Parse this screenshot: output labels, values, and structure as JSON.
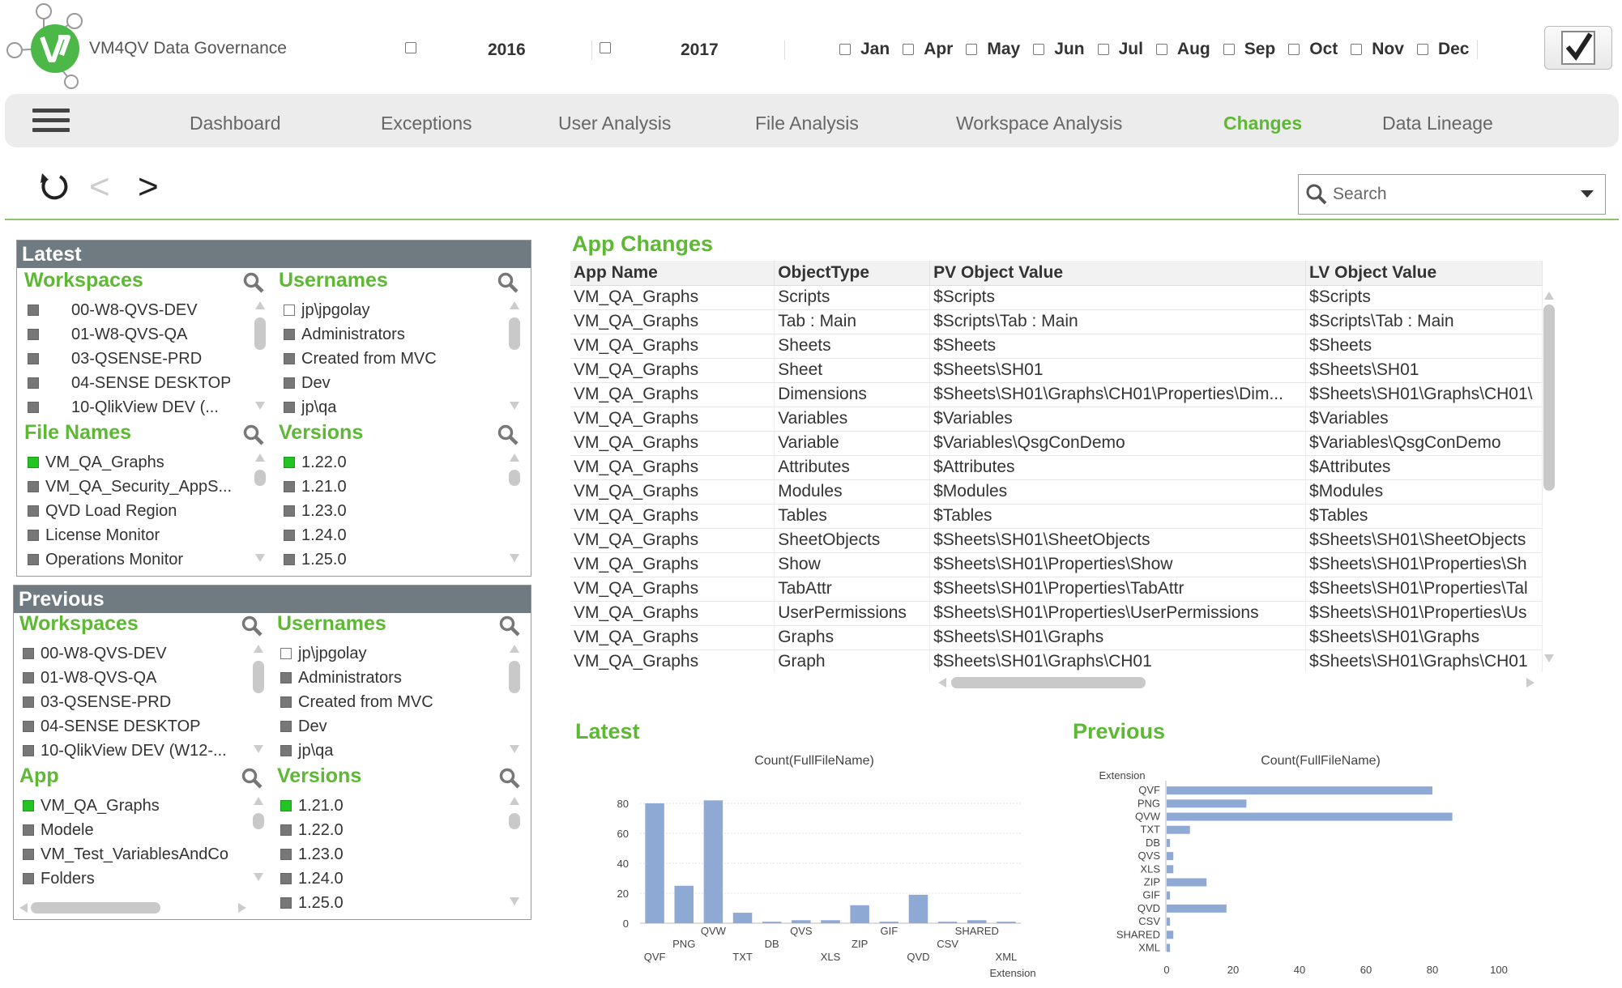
{
  "header": {
    "app_title": "VM4QV  Data Governance",
    "years": [
      "2016",
      "2017"
    ],
    "months": [
      "Jan",
      "Apr",
      "May",
      "Jun",
      "Jul",
      "Aug",
      "Sep",
      "Oct",
      "Nov",
      "Dec"
    ]
  },
  "nav": {
    "items": [
      "Dashboard",
      "Exceptions",
      "User Analysis",
      "File Analysis",
      "Workspace Analysis",
      "Changes",
      "Data Lineage"
    ],
    "active": "Changes"
  },
  "toolbar": {
    "search_placeholder": "Search",
    "back_glyph": "<",
    "forward_glyph": ">"
  },
  "latest_panel": {
    "title": "Latest",
    "workspaces": {
      "title": "Workspaces",
      "items": [
        "00-W8-QVS-DEV",
        "01-W8-QVS-QA",
        "03-QSENSE-PRD",
        "04-SENSE DESKTOP",
        "10-QlikView DEV (..."
      ]
    },
    "usernames": {
      "title": "Usernames",
      "items": [
        "jp\\jpgolay",
        "Administrators",
        "Created from MVC",
        "Dev",
        "jp\\qa"
      ]
    },
    "file_names": {
      "title": "File Names",
      "items": [
        "VM_QA_Graphs",
        "VM_QA_Security_AppS...",
        "QVD Load Region",
        "License Monitor",
        "Operations Monitor"
      ]
    },
    "versions": {
      "title": "Versions",
      "items": [
        "1.22.0",
        "1.21.0",
        "1.23.0",
        "1.24.0",
        "1.25.0"
      ]
    }
  },
  "previous_panel": {
    "title": "Previous",
    "workspaces": {
      "title": "Workspaces",
      "items": [
        "00-W8-QVS-DEV",
        "01-W8-QVS-QA",
        "03-QSENSE-PRD",
        "04-SENSE DESKTOP",
        "10-QlikView DEV (W12-..."
      ]
    },
    "usernames": {
      "title": "Usernames",
      "items": [
        "jp\\jpgolay",
        "Administrators",
        "Created from MVC",
        "Dev",
        "jp\\qa"
      ]
    },
    "app": {
      "title": "App",
      "items": [
        "VM_QA_Graphs",
        "Modele",
        "VM_Test_VariablesAndCo",
        "Folders"
      ]
    },
    "versions": {
      "title": "Versions",
      "items": [
        "1.21.0",
        "1.22.0",
        "1.23.0",
        "1.24.0",
        "1.25.0"
      ]
    }
  },
  "app_changes": {
    "title": "App Changes",
    "columns": [
      "App Name",
      "ObjectType",
      "PV Object Value",
      "LV Object Value"
    ],
    "rows": [
      [
        "VM_QA_Graphs",
        "Scripts",
        "$Scripts",
        "$Scripts"
      ],
      [
        "VM_QA_Graphs",
        "Tab : Main",
        "$Scripts\\Tab : Main",
        "$Scripts\\Tab : Main"
      ],
      [
        "VM_QA_Graphs",
        "Sheets",
        "$Sheets",
        "$Sheets"
      ],
      [
        "VM_QA_Graphs",
        "Sheet",
        "$Sheets\\SH01",
        "$Sheets\\SH01"
      ],
      [
        "VM_QA_Graphs",
        "Dimensions",
        "$Sheets\\SH01\\Graphs\\CH01\\Properties\\Dim...",
        "$Sheets\\SH01\\Graphs\\CH01\\"
      ],
      [
        "VM_QA_Graphs",
        "Variables",
        "$Variables",
        "$Variables"
      ],
      [
        "VM_QA_Graphs",
        "Variable",
        "$Variables\\QsgConDemo",
        "$Variables\\QsgConDemo"
      ],
      [
        "VM_QA_Graphs",
        "Attributes",
        "$Attributes",
        "$Attributes"
      ],
      [
        "VM_QA_Graphs",
        "Modules",
        "$Modules",
        "$Modules"
      ],
      [
        "VM_QA_Graphs",
        "Tables",
        "$Tables",
        "$Tables"
      ],
      [
        "VM_QA_Graphs",
        "SheetObjects",
        "$Sheets\\SH01\\SheetObjects",
        "$Sheets\\SH01\\SheetObjects"
      ],
      [
        "VM_QA_Graphs",
        "Show",
        "$Sheets\\SH01\\Properties\\Show",
        "$Sheets\\SH01\\Properties\\Sh"
      ],
      [
        "VM_QA_Graphs",
        "TabAttr",
        "$Sheets\\SH01\\Properties\\TabAttr",
        "$Sheets\\SH01\\Properties\\Tal"
      ],
      [
        "VM_QA_Graphs",
        "UserPermissions",
        "$Sheets\\SH01\\Properties\\UserPermissions",
        "$Sheets\\SH01\\Properties\\Us"
      ],
      [
        "VM_QA_Graphs",
        "Graphs",
        "$Sheets\\SH01\\Graphs",
        "$Sheets\\SH01\\Graphs"
      ],
      [
        "VM_QA_Graphs",
        "Graph",
        "$Sheets\\SH01\\Graphs\\CH01",
        "$Sheets\\SH01\\Graphs\\CH01"
      ]
    ]
  },
  "charts": {
    "latest_title": "Latest",
    "previous_title": "Previous"
  },
  "chart_data": [
    {
      "type": "bar",
      "orientation": "vertical",
      "title": "Count(FullFileName)",
      "xlabel": "Extension",
      "ylabel": "",
      "categories": [
        "QVF",
        "PNG",
        "QVW",
        "TXT",
        "DB",
        "QVS",
        "XLS",
        "ZIP",
        "GIF",
        "QVD",
        "CSV",
        "SHARED",
        "XML"
      ],
      "values": [
        80,
        25,
        82,
        7,
        1,
        2,
        2,
        12,
        1,
        19,
        1,
        2,
        1
      ],
      "ylim": [
        0,
        80
      ],
      "yticks": [
        0,
        20,
        40,
        60,
        80
      ],
      "color": "#8fa9d5",
      "grid": true
    },
    {
      "type": "bar",
      "orientation": "horizontal",
      "title": "Count(FullFileName)",
      "ylabel": "Extension",
      "xlabel": "",
      "categories": [
        "QVF",
        "PNG",
        "QVW",
        "TXT",
        "DB",
        "QVS",
        "XLS",
        "ZIP",
        "GIF",
        "QVD",
        "CSV",
        "SHARED",
        "XML"
      ],
      "values": [
        80,
        24,
        86,
        7,
        1,
        2,
        2,
        12,
        1,
        18,
        1,
        2,
        1
      ],
      "xlim": [
        0,
        100
      ],
      "xticks": [
        0,
        20,
        40,
        60,
        80,
        100
      ],
      "color": "#8fa9d5",
      "grid": false
    }
  ]
}
